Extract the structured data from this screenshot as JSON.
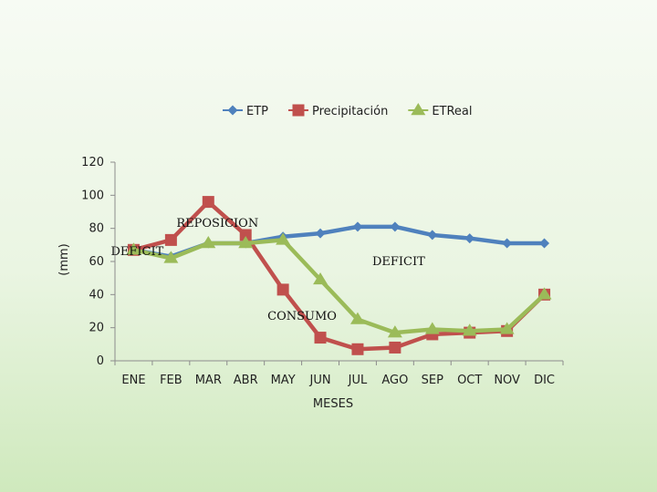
{
  "chart_data": {
    "type": "line",
    "title": "",
    "xlabel": "MESES",
    "ylabel": "(mm)",
    "categories": [
      "ENE",
      "FEB",
      "MAR",
      "ABR",
      "MAY",
      "JUN",
      "JUL",
      "AGO",
      "SEP",
      "OCT",
      "NOV",
      "DIC"
    ],
    "ylim": [
      0,
      120
    ],
    "yticks": [
      0,
      20,
      40,
      60,
      80,
      100,
      120
    ],
    "grid": false,
    "legend_position": "top",
    "series": [
      {
        "name": "ETP",
        "color": "#4f81bd",
        "marker": "diamond",
        "values": [
          67,
          63,
          71,
          71,
          75,
          77,
          81,
          81,
          76,
          74,
          71,
          71
        ]
      },
      {
        "name": "Precipitación",
        "color": "#c0504d",
        "marker": "square",
        "values": [
          67,
          73,
          96,
          76,
          43,
          14,
          7,
          8,
          16,
          17,
          18,
          40
        ]
      },
      {
        "name": "ETReal",
        "color": "#9bbb59",
        "marker": "triangle",
        "values": [
          67,
          62,
          71,
          71,
          73,
          49,
          25,
          17,
          19,
          18,
          19,
          40
        ]
      }
    ],
    "annotations": [
      {
        "text": "REPOSICION",
        "x": "MAR",
        "y": 83
      },
      {
        "text": "DEFICIT",
        "x": "ENE",
        "y": 66
      },
      {
        "text": "DEFICIT",
        "x": "AGO",
        "y": 60
      },
      {
        "text": "CONSUMO",
        "x": "JUN",
        "y": 27
      }
    ]
  }
}
